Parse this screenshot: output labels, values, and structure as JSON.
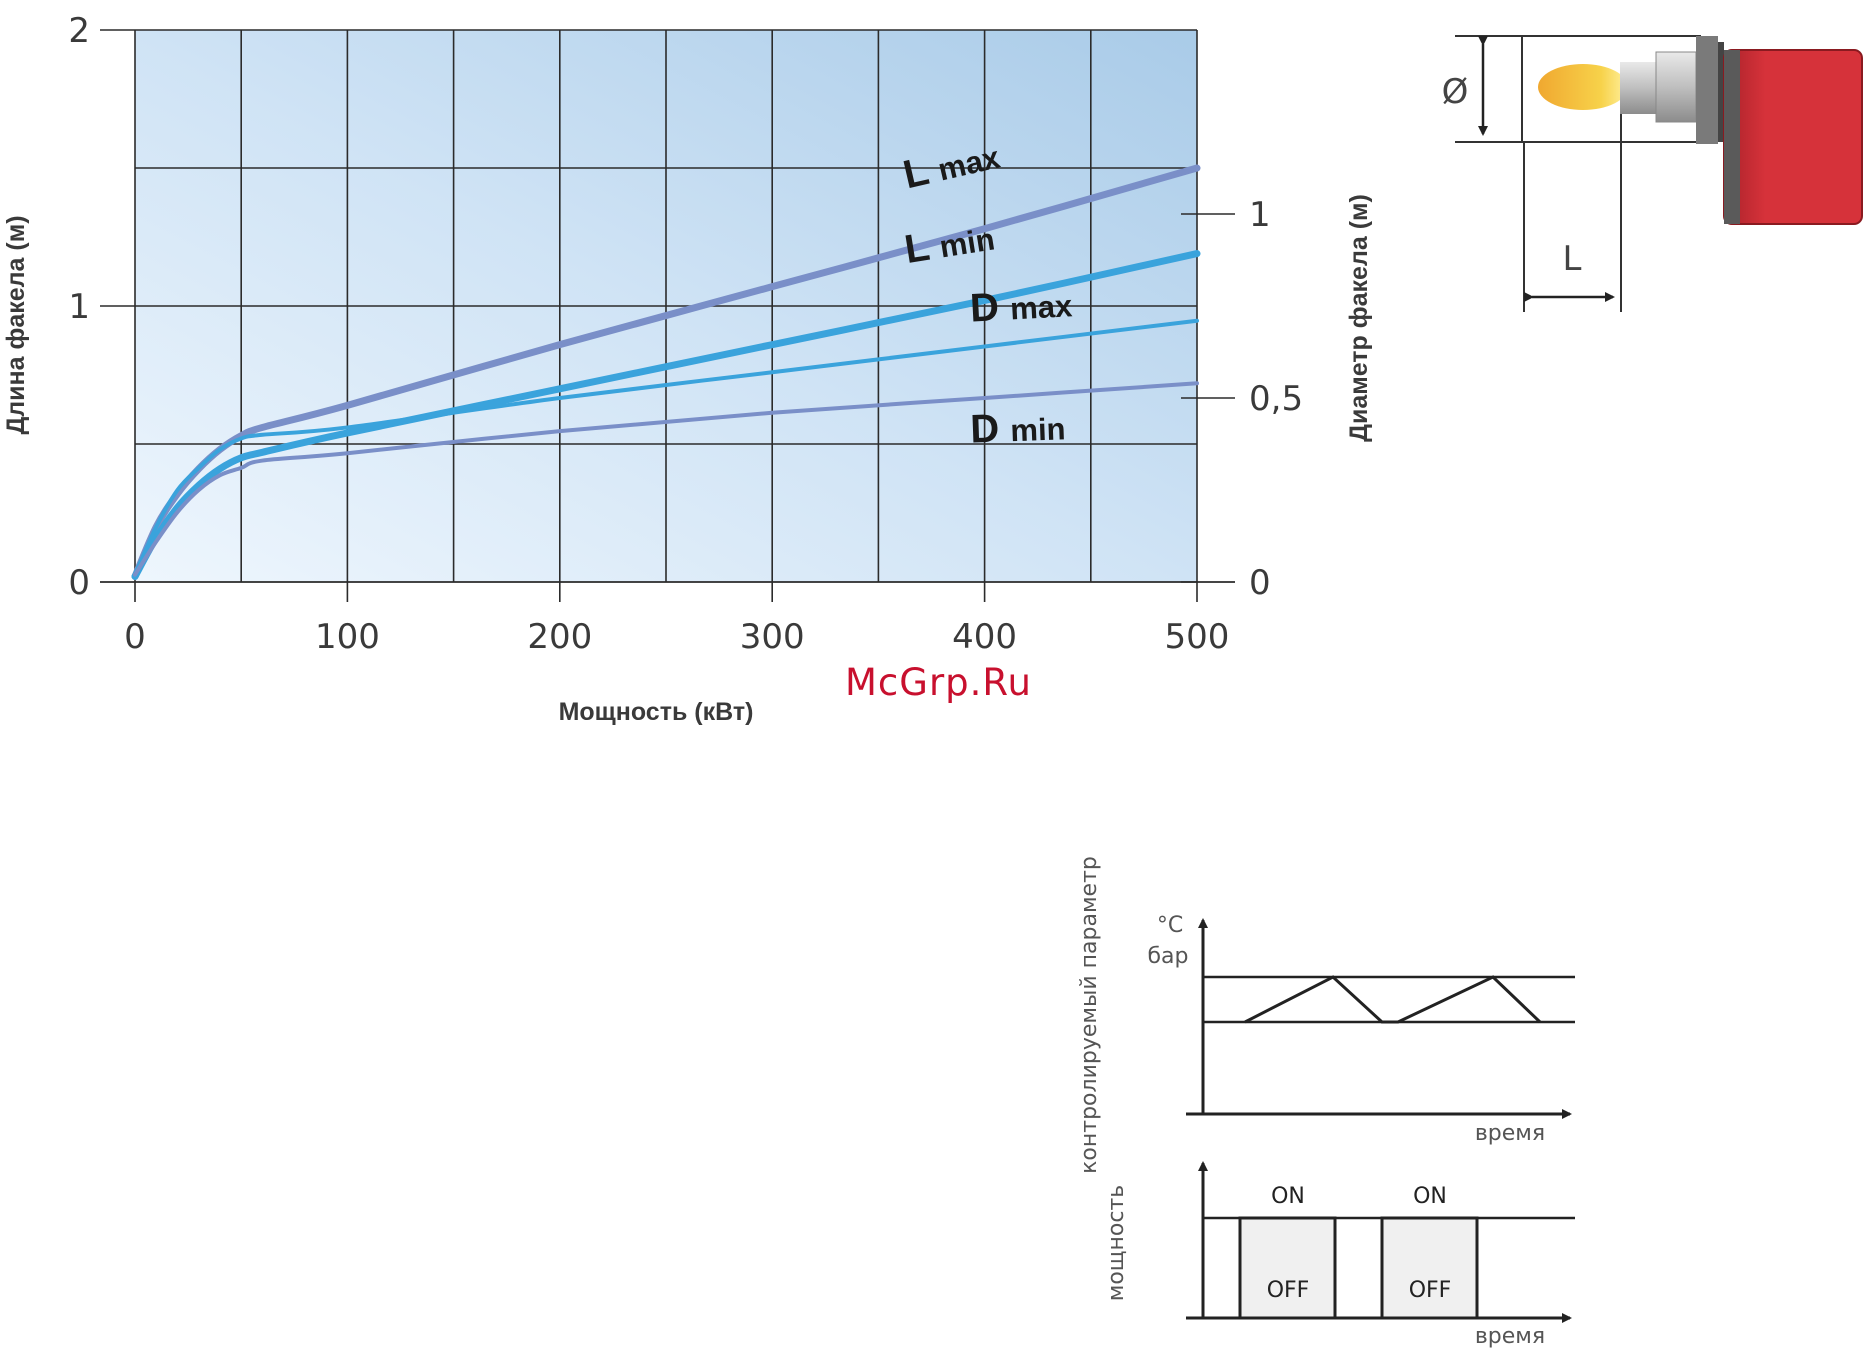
{
  "chart_data": {
    "type": "line",
    "xlabel": "Мощность (кВт)",
    "ylabel_left": "Длина факела (м)",
    "ylabel_right": "Диаметр факела (м)",
    "xlim": [
      0,
      500
    ],
    "ylim_left": [
      0,
      2
    ],
    "ylim_right": [
      0,
      1.5
    ],
    "x_ticks": [
      "0",
      "100",
      "200",
      "300",
      "400",
      "500"
    ],
    "y_left_ticks": [
      "0",
      "1",
      "2"
    ],
    "y_right_ticks": [
      "0",
      "0,5",
      "1"
    ],
    "grid": true,
    "series": [
      {
        "name": "L max",
        "axis": "left",
        "color": "#7a8fc8",
        "x": [
          0,
          10,
          20,
          30,
          40,
          50,
          60,
          100,
          200,
          300,
          400,
          500
        ],
        "y": [
          0.02,
          0.2,
          0.32,
          0.41,
          0.48,
          0.53,
          0.56,
          0.64,
          0.86,
          1.07,
          1.28,
          1.5
        ]
      },
      {
        "name": "L min",
        "axis": "left",
        "color": "#3aa3dc",
        "x": [
          0,
          10,
          20,
          30,
          40,
          50,
          60,
          100,
          200,
          300,
          400,
          500
        ],
        "y": [
          0.02,
          0.16,
          0.27,
          0.35,
          0.41,
          0.45,
          0.47,
          0.54,
          0.7,
          0.86,
          1.02,
          1.19
        ]
      },
      {
        "name": "D max",
        "axis": "right",
        "color": "#3aa3dc",
        "x": [
          0,
          10,
          20,
          30,
          40,
          50,
          60,
          100,
          200,
          300,
          400,
          500
        ],
        "y": [
          0.02,
          0.15,
          0.25,
          0.31,
          0.36,
          0.39,
          0.4,
          0.42,
          0.5,
          0.57,
          0.64,
          0.71
        ]
      },
      {
        "name": "D min",
        "axis": "right",
        "color": "#7a8fc8",
        "x": [
          0,
          10,
          20,
          30,
          40,
          50,
          60,
          100,
          200,
          300,
          400,
          500
        ],
        "y": [
          0.02,
          0.11,
          0.19,
          0.25,
          0.29,
          0.31,
          0.33,
          0.35,
          0.41,
          0.46,
          0.5,
          0.54
        ]
      }
    ],
    "curve_labels": [
      {
        "series": "L max",
        "big": "L",
        "small": "max"
      },
      {
        "series": "L min",
        "big": "L",
        "small": "min"
      },
      {
        "series": "D max",
        "big": "D",
        "small": "max"
      },
      {
        "series": "D min",
        "big": "D",
        "small": "min"
      }
    ]
  },
  "burner_diagram": {
    "diameter_label": "Ø",
    "length_label": "L",
    "colors": {
      "body": "#d6323a",
      "flame": "#f2b63a"
    }
  },
  "control_diagram": {
    "upper": {
      "y_axis_title": "контролируемый параметр",
      "unit_top": "°C",
      "unit_bottom": "бар",
      "x_axis_label": "время"
    },
    "lower": {
      "y_axis_title": "мощность",
      "x_axis_label": "время",
      "on_label": "ON",
      "off_label": "OFF"
    }
  },
  "watermark": "McGrp.Ru"
}
